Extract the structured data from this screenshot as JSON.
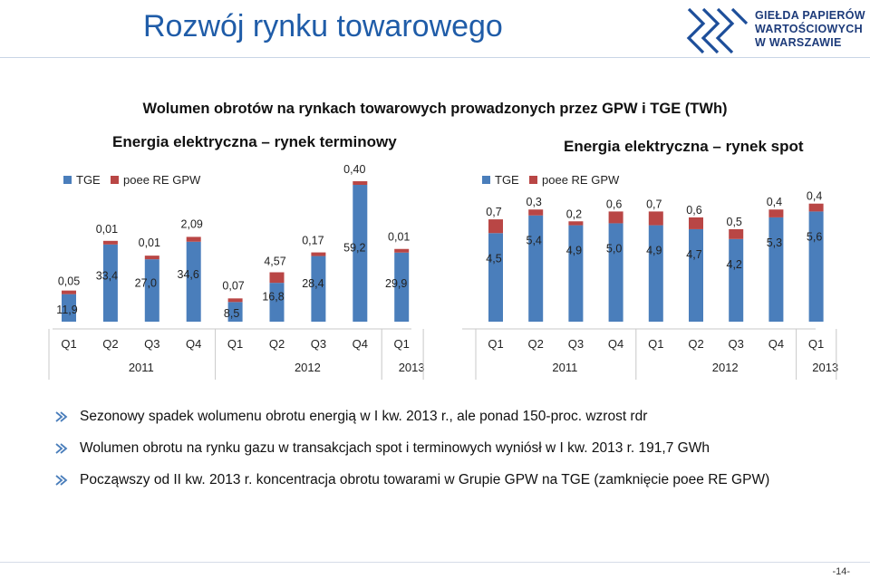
{
  "page_title": "Rozwój rynku towarowego",
  "logo": {
    "lines": [
      "GIEŁDA PAPIERÓW",
      "WARTOŚCIOWYCH",
      "W WARSZAWIE"
    ]
  },
  "main_title": "Wolumen obrotów na rynkach towarowych prowadzonych przez GPW i TGE (TWh)",
  "colors": {
    "tge": "#4a7ebb",
    "poee": "#b94645",
    "title": "#1f5ca8",
    "bullet": "#4a7ebb"
  },
  "bullets": [
    "Sezonowy spadek wolumenu obrotu energią w I kw. 2013 r., ale ponad 150-proc. wzrost rdr",
    "Wolumen obrotu na rynku gazu w transakcjach spot i terminowych wyniósł w I kw. 2013 r. 191,7 GWh",
    "Począwszy od II kw. 2013 r. koncentracja obrotu towarami w Grupie GPW na TGE (zamknięcie poee RE GPW)"
  ],
  "page_number": "-14-",
  "chart_data": [
    {
      "type": "bar",
      "stacked": true,
      "title": "Energia elektryczna – rynek terminowy",
      "categories": [
        "Q1",
        "Q2",
        "Q3",
        "Q4",
        "Q1",
        "Q2",
        "Q3",
        "Q4",
        "Q1"
      ],
      "years": [
        {
          "label": "2011",
          "span": 4
        },
        {
          "label": "2012",
          "span": 4
        },
        {
          "label": "2013",
          "span": 1
        }
      ],
      "series": [
        {
          "name": "TGE",
          "values": [
            11.9,
            33.4,
            27.0,
            34.6,
            8.5,
            16.8,
            28.4,
            59.2,
            29.9
          ],
          "labels": [
            "11,9",
            "33,4",
            "27,0",
            "34,6",
            "8,5",
            "16,8",
            "28,4",
            "59,2",
            "29,9"
          ]
        },
        {
          "name": "poee RE GPW",
          "values": [
            0.05,
            0.01,
            0.01,
            2.09,
            0.07,
            4.57,
            0.17,
            0.4,
            0.01
          ],
          "labels": [
            "0,05",
            "0,01",
            "0,01",
            "2,09",
            "0,07",
            "4,57",
            "0,17",
            "0,40",
            "0,01"
          ]
        }
      ],
      "legend": [
        "TGE",
        "poee RE GPW"
      ],
      "legend_position": "top-left"
    },
    {
      "type": "bar",
      "stacked": true,
      "title": "Energia elektryczna – rynek spot",
      "categories": [
        "Q1",
        "Q2",
        "Q3",
        "Q4",
        "Q1",
        "Q2",
        "Q3",
        "Q4",
        "Q1"
      ],
      "years": [
        {
          "label": "2011",
          "span": 4
        },
        {
          "label": "2012",
          "span": 4
        },
        {
          "label": "2013",
          "span": 1
        }
      ],
      "series": [
        {
          "name": "TGE",
          "values": [
            4.5,
            5.4,
            4.9,
            5.0,
            4.9,
            4.7,
            4.2,
            5.3,
            5.6
          ],
          "labels": [
            "4,5",
            "5,4",
            "4,9",
            "5,0",
            "4,9",
            "4,7",
            "4,2",
            "5,3",
            "5,6"
          ]
        },
        {
          "name": "poee RE GPW",
          "values": [
            0.7,
            0.3,
            0.2,
            0.6,
            0.7,
            0.6,
            0.5,
            0.4,
            0.4
          ],
          "labels": [
            "0,7",
            "0,3",
            "0,2",
            "0,6",
            "0,7",
            "0,6",
            "0,5",
            "0,4",
            "0,4"
          ]
        }
      ],
      "legend": [
        "TGE",
        "poee RE GPW"
      ],
      "legend_position": "top-left"
    }
  ]
}
